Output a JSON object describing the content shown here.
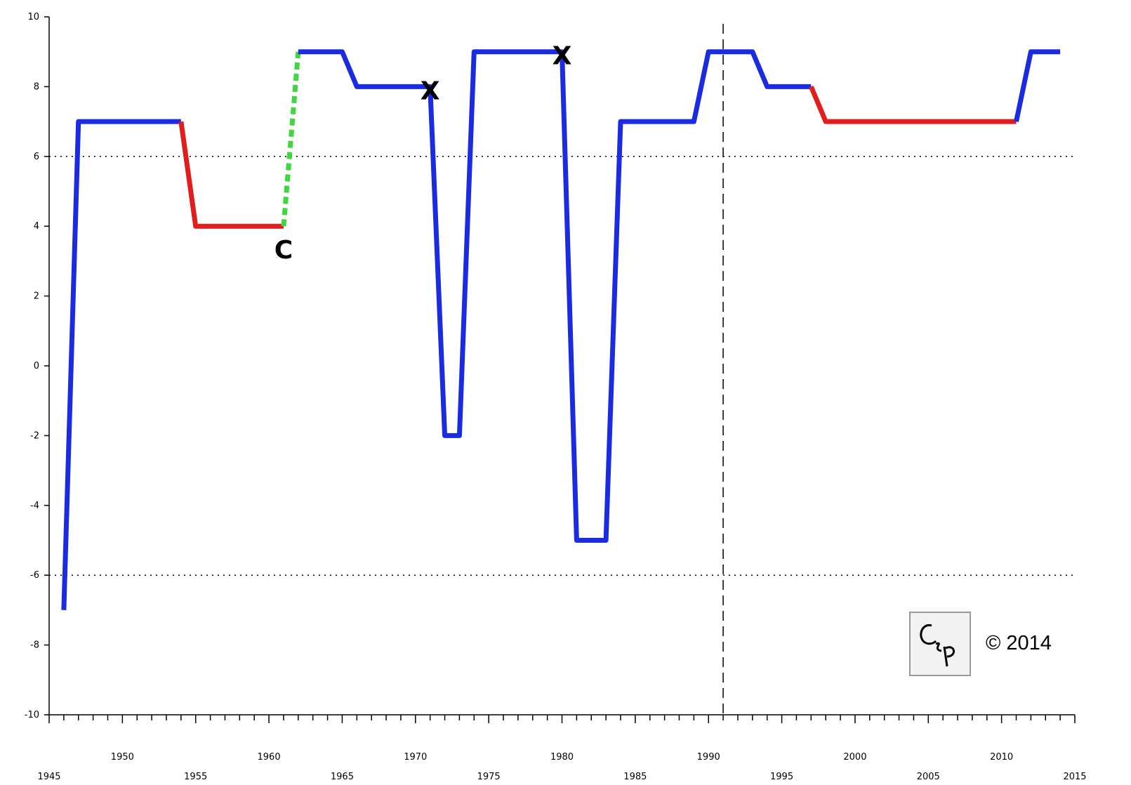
{
  "chart_data": {
    "type": "line",
    "x_range": [
      1945,
      2015
    ],
    "ylim": [
      -10,
      10
    ],
    "x_ticks_labeled": [
      1945,
      1950,
      1955,
      1960,
      1965,
      1970,
      1975,
      1980,
      1985,
      1990,
      1995,
      2000,
      2005,
      2010,
      2015
    ],
    "y_ticks": [
      10,
      8,
      6,
      4,
      2,
      0,
      -2,
      -4,
      -6,
      -8,
      -10
    ],
    "y_tick_labels": [
      "10",
      "8",
      "6",
      "4",
      "2",
      "0",
      "-2",
      "-4",
      "-6",
      "-8",
      "-10"
    ],
    "x_tick_labels": [
      "1945",
      "1950",
      "1955",
      "1960",
      "1965",
      "1970",
      "1975",
      "1980",
      "1985",
      "1990",
      "1995",
      "2000",
      "2005",
      "2010",
      "2015"
    ],
    "reference_lines": {
      "horizontal_dotted": [
        6,
        -6
      ],
      "vertical_dashed": [
        1991
      ]
    },
    "colors": {
      "line": "#1a2be0",
      "decline": "#e01e1e",
      "transition": "#3fd63f"
    },
    "segments": [
      {
        "color_key": "line",
        "style": "solid",
        "points": [
          [
            1946,
            -7
          ],
          [
            1947,
            7
          ],
          [
            1954,
            7
          ]
        ]
      },
      {
        "color_key": "decline",
        "style": "solid",
        "points": [
          [
            1954,
            7
          ],
          [
            1955,
            4
          ],
          [
            1961,
            4
          ]
        ]
      },
      {
        "color_key": "transition",
        "style": "dotted",
        "points": [
          [
            1961,
            4
          ],
          [
            1962,
            9
          ]
        ]
      },
      {
        "color_key": "line",
        "style": "solid",
        "points": [
          [
            1962,
            9
          ],
          [
            1965,
            9
          ],
          [
            1966,
            8
          ],
          [
            1971,
            8
          ],
          [
            1972,
            -2
          ],
          [
            1973,
            -2
          ],
          [
            1974,
            9
          ],
          [
            1980,
            9
          ],
          [
            1981,
            -5
          ],
          [
            1983,
            -5
          ],
          [
            1984,
            7
          ],
          [
            1989,
            7
          ],
          [
            1990,
            9
          ],
          [
            1993,
            9
          ],
          [
            1994,
            8
          ],
          [
            1997,
            8
          ]
        ]
      },
      {
        "color_key": "decline",
        "style": "solid",
        "points": [
          [
            1997,
            8
          ],
          [
            1998,
            7
          ],
          [
            2011,
            7
          ]
        ]
      },
      {
        "color_key": "line",
        "style": "solid",
        "points": [
          [
            2011,
            7
          ],
          [
            2012,
            9
          ],
          [
            2014,
            9
          ]
        ]
      }
    ],
    "annotations": [
      {
        "text": "C",
        "x": 1961,
        "y": 4
      },
      {
        "text": "X",
        "x": 1971,
        "y": 8
      },
      {
        "text": "X",
        "x": 1980,
        "y": 9
      }
    ]
  },
  "watermark": {
    "logo_text": "CSP",
    "copyright": "© 2014"
  }
}
